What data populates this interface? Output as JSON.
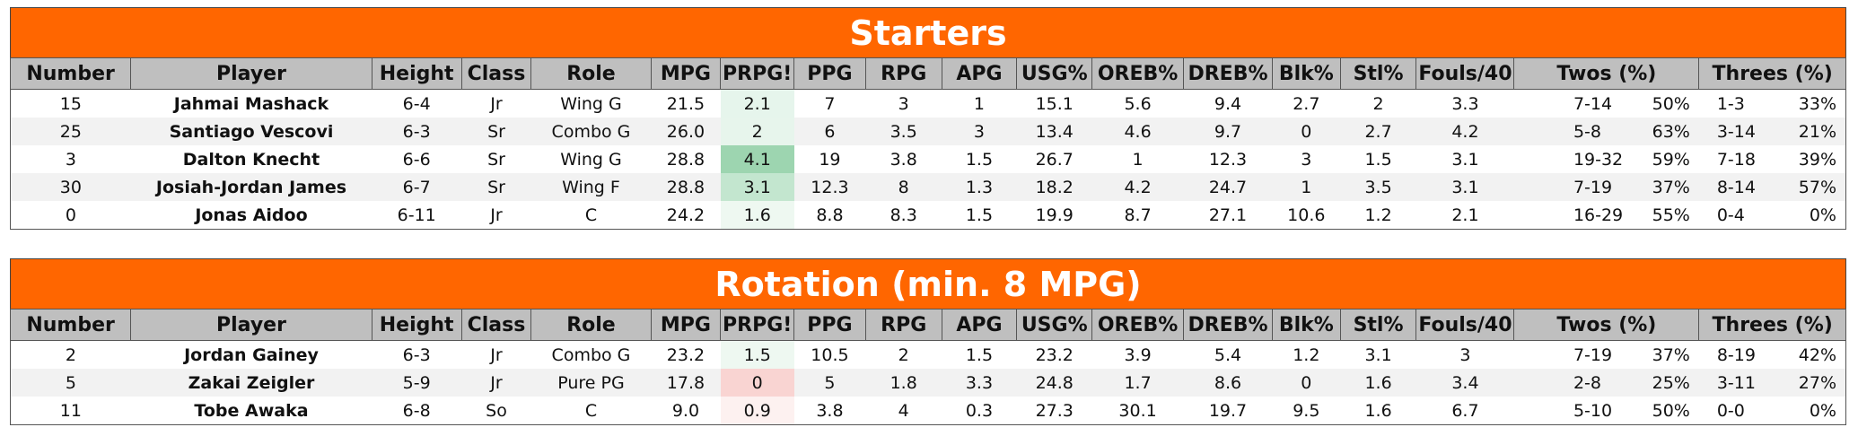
{
  "columns": [
    "Number",
    "Player",
    "Height",
    "Class",
    "Role",
    "MPG",
    "PRPG!",
    "PPG",
    "RPG",
    "APG",
    "USG%",
    "OREB%",
    "DREB%",
    "Blk%",
    "Stl%",
    "Fouls/40",
    "Twos (%)",
    "Threes (%)"
  ],
  "starters": {
    "title": "Starters",
    "rows": [
      {
        "number": "15",
        "player": "Jahmai Mashack",
        "height": "6-4",
        "class": "Jr",
        "role": "Wing G",
        "mpg": "21.5",
        "prpg": "2.1",
        "prpg_color": "#e6f5ec",
        "ppg": "7",
        "rpg": "3",
        "apg": "1",
        "usg": "15.1",
        "oreb": "5.6",
        "dreb": "9.4",
        "blk": "2.7",
        "stl": "2",
        "fouls": "3.3",
        "twos": "7-14",
        "twos_pct": "50%",
        "threes": "1-3",
        "threes_pct": "33%"
      },
      {
        "number": "25",
        "player": "Santiago Vescovi",
        "height": "6-3",
        "class": "Sr",
        "role": "Combo G",
        "mpg": "26.0",
        "prpg": "2",
        "prpg_color": "#e7f5ec",
        "ppg": "6",
        "rpg": "3.5",
        "apg": "3",
        "usg": "13.4",
        "oreb": "4.6",
        "dreb": "9.7",
        "blk": "0",
        "stl": "2.7",
        "fouls": "4.2",
        "twos": "5-8",
        "twos_pct": "63%",
        "threes": "3-14",
        "threes_pct": "21%"
      },
      {
        "number": "3",
        "player": "Dalton Knecht",
        "height": "6-6",
        "class": "Sr",
        "role": "Wing G",
        "mpg": "28.8",
        "prpg": "4.1",
        "prpg_color": "#9dd5b0",
        "ppg": "19",
        "rpg": "3.8",
        "apg": "1.5",
        "usg": "26.7",
        "oreb": "1",
        "dreb": "12.3",
        "blk": "3",
        "stl": "1.5",
        "fouls": "3.1",
        "twos": "19-32",
        "twos_pct": "59%",
        "threes": "7-18",
        "threes_pct": "39%"
      },
      {
        "number": "30",
        "player": "Josiah-Jordan James",
        "height": "6-7",
        "class": "Sr",
        "role": "Wing F",
        "mpg": "28.8",
        "prpg": "3.1",
        "prpg_color": "#c3e6cf",
        "ppg": "12.3",
        "rpg": "8",
        "apg": "1.3",
        "usg": "18.2",
        "oreb": "4.2",
        "dreb": "24.7",
        "blk": "1",
        "stl": "3.5",
        "fouls": "3.1",
        "twos": "7-19",
        "twos_pct": "37%",
        "threes": "8-14",
        "threes_pct": "57%"
      },
      {
        "number": "0",
        "player": "Jonas Aidoo",
        "height": "6-11",
        "class": "Jr",
        "role": "C",
        "mpg": "24.2",
        "prpg": "1.6",
        "prpg_color": "#eef8f1",
        "ppg": "8.8",
        "rpg": "8.3",
        "apg": "1.5",
        "usg": "19.9",
        "oreb": "8.7",
        "dreb": "27.1",
        "blk": "10.6",
        "stl": "1.2",
        "fouls": "2.1",
        "twos": "16-29",
        "twos_pct": "55%",
        "threes": "0-4",
        "threes_pct": "0%"
      }
    ]
  },
  "rotation": {
    "title": "Rotation (min. 8 MPG)",
    "rows": [
      {
        "number": "2",
        "player": "Jordan Gainey",
        "height": "6-3",
        "class": "Jr",
        "role": "Combo G",
        "mpg": "23.2",
        "prpg": "1.5",
        "prpg_color": "#eef8f1",
        "ppg": "10.5",
        "rpg": "2",
        "apg": "1.5",
        "usg": "23.2",
        "oreb": "3.9",
        "dreb": "5.4",
        "blk": "1.2",
        "stl": "3.1",
        "fouls": "3",
        "twos": "7-19",
        "twos_pct": "37%",
        "threes": "8-19",
        "threes_pct": "42%"
      },
      {
        "number": "5",
        "player": "Zakai Zeigler",
        "height": "5-9",
        "class": "Jr",
        "role": "Pure PG",
        "mpg": "17.8",
        "prpg": "0",
        "prpg_color": "#f9d4d2",
        "ppg": "5",
        "rpg": "1.8",
        "apg": "3.3",
        "usg": "24.8",
        "oreb": "1.7",
        "dreb": "8.6",
        "blk": "0",
        "stl": "1.6",
        "fouls": "3.4",
        "twos": "2-8",
        "twos_pct": "25%",
        "threes": "3-11",
        "threes_pct": "27%"
      },
      {
        "number": "11",
        "player": "Tobe Awaka",
        "height": "6-8",
        "class": "So",
        "role": "C",
        "mpg": "9.0",
        "prpg": "0.9",
        "prpg_color": "#fdf1f0",
        "ppg": "3.8",
        "rpg": "4",
        "apg": "0.3",
        "usg": "27.3",
        "oreb": "30.1",
        "dreb": "19.7",
        "blk": "9.5",
        "stl": "1.6",
        "fouls": "6.7",
        "twos": "5-10",
        "twos_pct": "50%",
        "threes": "0-0",
        "threes_pct": "0%"
      }
    ]
  }
}
